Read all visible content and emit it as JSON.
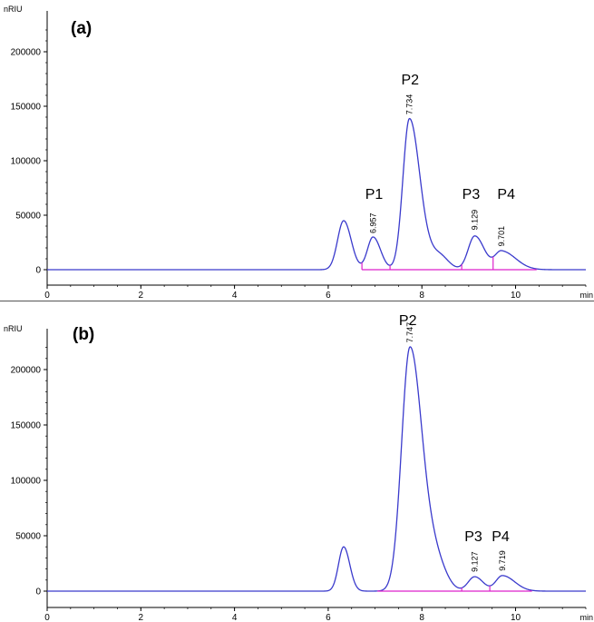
{
  "chart_data": [
    {
      "type": "line",
      "panel_label": "(a)",
      "ylabel": "nRIU",
      "xlabel": "min",
      "xlim": [
        0,
        11.5
      ],
      "ylim": [
        -25000,
        240000
      ],
      "x_ticks": [
        0,
        2,
        4,
        6,
        8,
        10
      ],
      "y_ticks": [
        0,
        50000,
        100000,
        150000,
        200000
      ],
      "line_color": "#3a3acc",
      "marker_color": "#dd22cc",
      "peaks": [
        {
          "center": 6.33,
          "height": 45000,
          "sigL": 0.13,
          "sigR": 0.16
        },
        {
          "center": 6.957,
          "height": 30000,
          "sigL": 0.12,
          "sigR": 0.16
        },
        {
          "center": 7.734,
          "height": 138000,
          "sigL": 0.14,
          "sigR": 0.22
        },
        {
          "center": 8.35,
          "height": 14000,
          "sigL": 0.25,
          "sigR": 0.2
        },
        {
          "center": 9.129,
          "height": 31000,
          "sigL": 0.14,
          "sigR": 0.2
        },
        {
          "center": 9.701,
          "height": 17000,
          "sigL": 0.14,
          "sigR": 0.3
        }
      ],
      "retention_labels": [
        {
          "text": "6.957",
          "x": 6.957,
          "y": 30000
        },
        {
          "text": "7.734",
          "x": 7.734,
          "y": 139000
        },
        {
          "text": "9.129",
          "x": 9.129,
          "y": 33000
        },
        {
          "text": "9.701",
          "x": 9.701,
          "y": 18000
        }
      ],
      "peak_names": [
        {
          "text": "P1",
          "x": 6.98,
          "y": 65000
        },
        {
          "text": "P2",
          "x": 7.75,
          "y": 170000
        },
        {
          "text": "P3",
          "x": 9.05,
          "y": 65000
        },
        {
          "text": "P4",
          "x": 9.8,
          "y": 65000
        }
      ],
      "baseline": {
        "x_start": 6.72,
        "x_end": 10.45
      },
      "markers": [
        6.72,
        7.32,
        8.85,
        9.52
      ]
    },
    {
      "type": "line",
      "panel_label": "(b)",
      "ylabel": "nRIU",
      "xlabel": "min",
      "xlim": [
        0,
        11.5
      ],
      "ylim": [
        -5000,
        235000
      ],
      "x_ticks": [
        0,
        2,
        4,
        6,
        8,
        10
      ],
      "y_ticks": [
        0,
        50000,
        100000,
        150000,
        200000
      ],
      "line_color": "#3a3acc",
      "marker_color": "#dd22cc",
      "peaks": [
        {
          "center": 6.33,
          "height": 40000,
          "sigL": 0.11,
          "sigR": 0.13
        },
        {
          "center": 7.747,
          "height": 220000,
          "sigL": 0.18,
          "sigR": 0.26
        },
        {
          "center": 8.3,
          "height": 25000,
          "sigL": 0.2,
          "sigR": 0.22
        },
        {
          "center": 9.127,
          "height": 13000,
          "sigL": 0.14,
          "sigR": 0.18
        },
        {
          "center": 9.719,
          "height": 14000,
          "sigL": 0.14,
          "sigR": 0.26
        }
      ],
      "retention_labels": [
        {
          "text": "7.747",
          "x": 7.747,
          "y": 221000
        },
        {
          "text": "9.127",
          "x": 9.127,
          "y": 14000
        },
        {
          "text": "9.719",
          "x": 9.719,
          "y": 15000
        }
      ],
      "peak_names": [
        {
          "text": "P2",
          "x": 7.7,
          "y": 240000
        },
        {
          "text": "P3",
          "x": 9.1,
          "y": 45000
        },
        {
          "text": "P4",
          "x": 9.68,
          "y": 45000
        }
      ],
      "baseline": {
        "x_start": 7.05,
        "x_end": 10.35
      },
      "markers": [
        8.85,
        9.45
      ]
    }
  ]
}
